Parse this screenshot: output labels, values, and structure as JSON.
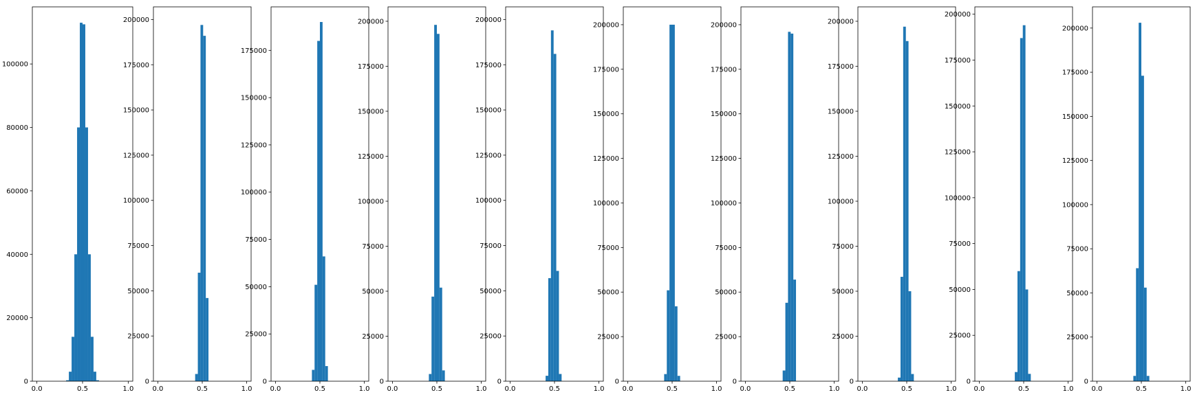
{
  "style": {
    "bar_color": "#1f77b4",
    "axes_color": "#000000",
    "background": "#ffffff"
  },
  "chart_data": [
    {
      "type": "bar",
      "title": "",
      "xlabel": "",
      "ylabel": "",
      "grid": false,
      "legend": "none",
      "xlim": [
        -0.05,
        1.05
      ],
      "ylim": [
        0,
        118000
      ],
      "xticks": [
        0.0,
        0.5,
        1.0
      ],
      "xtick_labels": [
        "0.0",
        "0.5",
        "1.0"
      ],
      "yticks": [
        0,
        20000,
        40000,
        60000,
        80000,
        100000
      ],
      "ytick_labels": [
        "0",
        "20000",
        "40000",
        "60000",
        "80000",
        "100000"
      ],
      "bin_edges": [
        0.32,
        0.35,
        0.38,
        0.41,
        0.44,
        0.47,
        0.5,
        0.53,
        0.56,
        0.59,
        0.62,
        0.65,
        0.68
      ],
      "values": [
        300,
        3000,
        14000,
        40000,
        80000,
        113000,
        112500,
        80000,
        40000,
        14000,
        3000,
        300
      ]
    },
    {
      "type": "bar",
      "title": "",
      "xlabel": "",
      "ylabel": "",
      "grid": false,
      "legend": "none",
      "xlim": [
        -0.05,
        1.05
      ],
      "ylim": [
        0,
        207000
      ],
      "xticks": [
        0.0,
        0.5,
        1.0
      ],
      "xtick_labels": [
        "0.0",
        "0.5",
        "1.0"
      ],
      "yticks": [
        0,
        25000,
        50000,
        75000,
        100000,
        125000,
        150000,
        175000,
        200000
      ],
      "ytick_labels": [
        "0",
        "25000",
        "50000",
        "75000",
        "100000",
        "125000",
        "150000",
        "175000",
        "200000"
      ],
      "bin_edges": [
        0.42,
        0.45,
        0.48,
        0.51,
        0.54,
        0.57
      ],
      "values": [
        4000,
        60000,
        197000,
        191000,
        46000
      ]
    },
    {
      "type": "bar",
      "title": "",
      "xlabel": "",
      "ylabel": "",
      "grid": false,
      "legend": "none",
      "xlim": [
        -0.05,
        1.05
      ],
      "ylim": [
        0,
        198000
      ],
      "xticks": [
        0.0,
        0.5,
        1.0
      ],
      "xtick_labels": [
        "0.0",
        "0.5",
        "1.0"
      ],
      "yticks": [
        0,
        25000,
        50000,
        75000,
        100000,
        125000,
        150000,
        175000
      ],
      "ytick_labels": [
        "0",
        "25000",
        "50000",
        "75000",
        "100000",
        "125000",
        "150000",
        "175000"
      ],
      "bin_edges": [
        0.41,
        0.44,
        0.47,
        0.5,
        0.53,
        0.56,
        0.59
      ],
      "values": [
        6000,
        51000,
        180000,
        190000,
        66000,
        8000
      ]
    },
    {
      "type": "bar",
      "title": "",
      "xlabel": "",
      "ylabel": "",
      "grid": false,
      "legend": "none",
      "xlim": [
        -0.05,
        1.05
      ],
      "ylim": [
        0,
        208000
      ],
      "xticks": [
        0.0,
        0.5,
        1.0
      ],
      "xtick_labels": [
        "0.0",
        "0.5",
        "1.0"
      ],
      "yticks": [
        0,
        25000,
        50000,
        75000,
        100000,
        125000,
        150000,
        175000,
        200000
      ],
      "ytick_labels": [
        "0",
        "25000",
        "50000",
        "75000",
        "100000",
        "125000",
        "150000",
        "175000",
        "200000"
      ],
      "bin_edges": [
        0.41,
        0.44,
        0.47,
        0.5,
        0.53,
        0.56,
        0.59
      ],
      "values": [
        4000,
        47000,
        198000,
        193000,
        52000,
        6000
      ]
    },
    {
      "type": "bar",
      "title": "",
      "xlabel": "",
      "ylabel": "",
      "grid": false,
      "legend": "none",
      "xlim": [
        -0.05,
        1.05
      ],
      "ylim": [
        0,
        207000
      ],
      "xticks": [
        0.0,
        0.5,
        1.0
      ],
      "xtick_labels": [
        "0.0",
        "0.5",
        "1.0"
      ],
      "yticks": [
        0,
        25000,
        50000,
        75000,
        100000,
        125000,
        150000,
        175000,
        200000
      ],
      "ytick_labels": [
        "0",
        "25000",
        "50000",
        "75000",
        "100000",
        "125000",
        "150000",
        "175000",
        "200000"
      ],
      "bin_edges": [
        0.4,
        0.43,
        0.46,
        0.49,
        0.52,
        0.55,
        0.58
      ],
      "values": [
        3000,
        57000,
        194000,
        181000,
        61000,
        4000
      ]
    },
    {
      "type": "bar",
      "title": "",
      "xlabel": "",
      "ylabel": "",
      "grid": false,
      "legend": "none",
      "xlim": [
        -0.05,
        1.05
      ],
      "ylim": [
        0,
        210000
      ],
      "xticks": [
        0.0,
        0.5,
        1.0
      ],
      "xtick_labels": [
        "0.0",
        "0.5",
        "1.0"
      ],
      "yticks": [
        0,
        25000,
        50000,
        75000,
        100000,
        125000,
        150000,
        175000,
        200000
      ],
      "ytick_labels": [
        "0",
        "25000",
        "50000",
        "75000",
        "100000",
        "125000",
        "150000",
        "175000",
        "200000"
      ],
      "bin_edges": [
        0.41,
        0.44,
        0.47,
        0.5,
        0.53,
        0.56,
        0.59
      ],
      "values": [
        4000,
        51000,
        200000,
        200000,
        42000,
        3000
      ]
    },
    {
      "type": "bar",
      "title": "",
      "xlabel": "",
      "ylabel": "",
      "grid": false,
      "legend": "none",
      "xlim": [
        -0.05,
        1.05
      ],
      "ylim": [
        0,
        210000
      ],
      "xticks": [
        0.0,
        0.5,
        1.0
      ],
      "xtick_labels": [
        "0.0",
        "0.5",
        "1.0"
      ],
      "yticks": [
        0,
        25000,
        50000,
        75000,
        100000,
        125000,
        150000,
        175000,
        200000
      ],
      "ytick_labels": [
        "0",
        "25000",
        "50000",
        "75000",
        "100000",
        "125000",
        "150000",
        "175000",
        "200000"
      ],
      "bin_edges": [
        0.42,
        0.45,
        0.48,
        0.51,
        0.54,
        0.57
      ],
      "values": [
        6000,
        44000,
        196000,
        195000,
        57000,
        2000
      ]
    },
    {
      "type": "bar",
      "title": "",
      "xlabel": "",
      "ylabel": "",
      "grid": false,
      "legend": "none",
      "xlim": [
        -0.05,
        1.05
      ],
      "ylim": [
        0,
        208000
      ],
      "xticks": [
        0.0,
        0.5,
        1.0
      ],
      "xtick_labels": [
        "0.0",
        "0.5",
        "1.0"
      ],
      "yticks": [
        0,
        25000,
        50000,
        75000,
        100000,
        125000,
        150000,
        175000,
        200000
      ],
      "ytick_labels": [
        "0",
        "25000",
        "50000",
        "75000",
        "100000",
        "125000",
        "150000",
        "175000",
        "200000"
      ],
      "bin_edges": [
        0.4,
        0.43,
        0.46,
        0.49,
        0.52,
        0.55,
        0.58
      ],
      "values": [
        2000,
        58000,
        197000,
        189000,
        50000,
        4000
      ]
    },
    {
      "type": "bar",
      "title": "",
      "xlabel": "",
      "ylabel": "",
      "grid": false,
      "legend": "none",
      "xlim": [
        -0.05,
        1.05
      ],
      "ylim": [
        0,
        204000
      ],
      "xticks": [
        0.0,
        0.5,
        1.0
      ],
      "xtick_labels": [
        "0.0",
        "0.5",
        "1.0"
      ],
      "yticks": [
        0,
        25000,
        50000,
        75000,
        100000,
        125000,
        150000,
        175000,
        200000
      ],
      "ytick_labels": [
        "0",
        "25000",
        "50000",
        "75000",
        "100000",
        "125000",
        "150000",
        "175000",
        "200000"
      ],
      "bin_edges": [
        0.4,
        0.43,
        0.46,
        0.49,
        0.52,
        0.55,
        0.58
      ],
      "values": [
        5000,
        60000,
        187000,
        194000,
        50000,
        4000
      ]
    },
    {
      "type": "bar",
      "title": "",
      "xlabel": "",
      "ylabel": "",
      "grid": false,
      "legend": "none",
      "xlim": [
        -0.05,
        1.05
      ],
      "ylim": [
        0,
        212000
      ],
      "xticks": [
        0.0,
        0.5,
        1.0
      ],
      "xtick_labels": [
        "0.0",
        "0.5",
        "1.0"
      ],
      "yticks": [
        0,
        25000,
        50000,
        75000,
        100000,
        125000,
        150000,
        175000,
        200000
      ],
      "ytick_labels": [
        "0",
        "25000",
        "50000",
        "75000",
        "100000",
        "125000",
        "150000",
        "175000",
        "200000"
      ],
      "bin_edges": [
        0.41,
        0.44,
        0.47,
        0.5,
        0.53,
        0.56,
        0.59
      ],
      "values": [
        3000,
        64000,
        203000,
        173000,
        53000,
        3000
      ]
    }
  ]
}
